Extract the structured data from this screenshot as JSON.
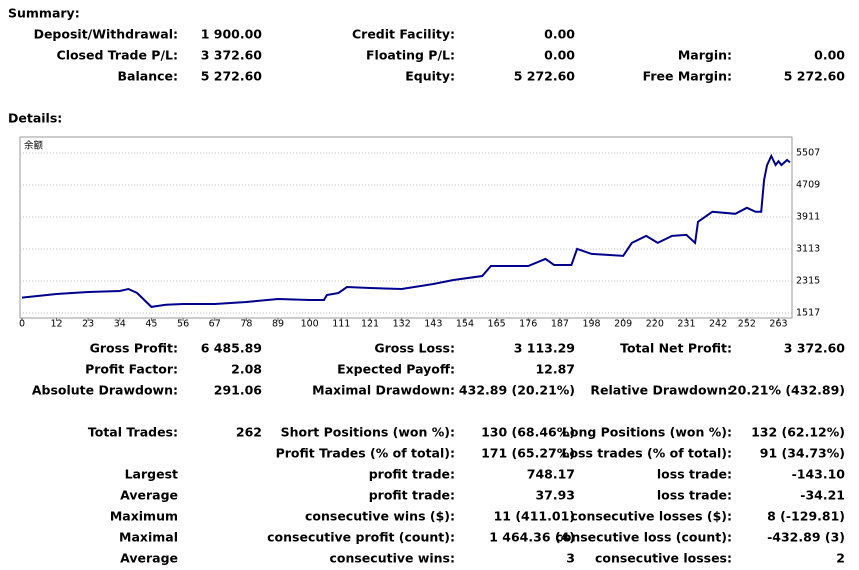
{
  "summary": {
    "title": "Summary:",
    "rows": [
      [
        "Deposit/Withdrawal:",
        "1 900.00",
        "Credit Facility:",
        "0.00",
        null,
        null
      ],
      [
        "Closed Trade P/L:",
        "3 372.60",
        "Floating P/L:",
        "0.00",
        "Margin:",
        "0.00"
      ],
      [
        "Balance:",
        "5 272.60",
        "Equity:",
        "5 272.60",
        "Free Margin:",
        "5 272.60"
      ]
    ]
  },
  "details": {
    "title": "Details:",
    "chart_data": {
      "type": "line",
      "label": "余额",
      "x": [
        0,
        12,
        23,
        34,
        37,
        40,
        45,
        50,
        56,
        67,
        78,
        89,
        100,
        105,
        106,
        110,
        113,
        121,
        132,
        143,
        150,
        160,
        163,
        176,
        182,
        185,
        191,
        193,
        198,
        209,
        212,
        217,
        221,
        226,
        231,
        234,
        235,
        240,
        248,
        252,
        255,
        257,
        258,
        259,
        260.5,
        262,
        263,
        264,
        266,
        267
      ],
      "series": [
        {
          "name": "余额",
          "color": "#00008b",
          "values": [
            1900,
            1990,
            2040,
            2065,
            2115,
            2015,
            1670,
            1720,
            1740,
            1740,
            1790,
            1865,
            1840,
            1840,
            1965,
            2015,
            2165,
            2140,
            2115,
            2240,
            2340,
            2440,
            2690,
            2690,
            2865,
            2715,
            2715,
            3115,
            2990,
            2940,
            3265,
            3440,
            3265,
            3440,
            3465,
            3265,
            3790,
            4040,
            3990,
            4140,
            4040,
            4040,
            4835,
            5200,
            5432,
            5207,
            5300,
            5207,
            5332,
            5272.6
          ]
        }
      ],
      "xlim": [
        0,
        267
      ],
      "xticks": [
        0,
        12,
        23,
        34,
        45,
        56,
        67,
        78,
        89,
        100,
        111,
        121,
        132,
        143,
        154,
        165,
        176,
        187,
        198,
        209,
        220,
        231,
        242,
        252,
        263
      ],
      "ylim": [
        1392,
        5906
      ],
      "yticks": [
        1517,
        2315,
        3113,
        3911,
        4709,
        5507
      ],
      "grid": true
    },
    "rows": [
      [
        "Gross Profit:",
        "6 485.89",
        "Gross Loss:",
        "3 113.29",
        "Total Net Profit:",
        "3 372.60"
      ],
      [
        "Profit Factor:",
        "2.08",
        "Expected Payoff:",
        "12.87",
        null,
        null
      ],
      [
        "Absolute Drawdown:",
        "291.06",
        "Maximal Drawdown:",
        "432.89 (20.21%)",
        "Relative Drawdown:",
        "20.21% (432.89)"
      ],
      [
        "Total Trades:",
        "262",
        "Short Positions (won %):",
        "130 (68.46%)",
        "Long Positions (won %):",
        "132 (62.12%)"
      ],
      [
        null,
        null,
        "Profit Trades (% of total):",
        "171 (65.27%)",
        "Loss trades (% of total):",
        "91 (34.73%)"
      ],
      [
        "Largest",
        null,
        "profit trade:",
        "748.17",
        "loss trade:",
        "-143.10"
      ],
      [
        "Average",
        null,
        "profit trade:",
        "37.93",
        "loss trade:",
        "-34.21"
      ],
      [
        "Maximum",
        null,
        "consecutive wins ($):",
        "11 (411.01)",
        "consecutive losses ($):",
        "8 (-129.81)"
      ],
      [
        "Maximal",
        null,
        "consecutive profit (count):",
        "1 464.36 (4)",
        "consecutive loss (count):",
        "-432.89 (3)"
      ],
      [
        "Average",
        null,
        "consecutive wins:",
        "3",
        "consecutive losses:",
        "2"
      ]
    ]
  }
}
